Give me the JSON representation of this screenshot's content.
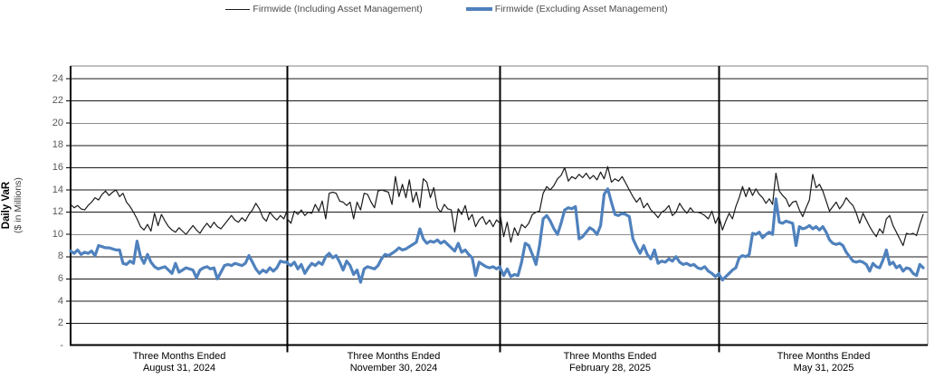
{
  "chart_data": {
    "type": "line",
    "ylabel": "Daily VaR",
    "ylabel_sub": "($ in Millions)",
    "ylim": [
      0,
      25.1
    ],
    "yticks": [
      2,
      4,
      6,
      8,
      10,
      12,
      14,
      16,
      18,
      20,
      22,
      24
    ],
    "y_zero_label": "-",
    "grid": "horizontal",
    "legend_position": "top",
    "x_groups": [
      {
        "label_line1": "Three Months Ended",
        "label_line2": "August 31, 2024"
      },
      {
        "label_line1": "Three Months Ended",
        "label_line2": "November 30, 2024"
      },
      {
        "label_line1": "Three Months Ended",
        "label_line2": "February 28, 2025"
      },
      {
        "label_line1": "Three Months Ended",
        "label_line2": "May 31, 2025"
      }
    ],
    "series": [
      {
        "name": "Firmwide (Including Asset Management)",
        "color": "#1a1a1a",
        "style": "thin",
        "values_by_quarter": [
          [
            12.7,
            12.4,
            12.6,
            12.3,
            12.2,
            12.6,
            12.9,
            13.3,
            13.1,
            13.6,
            13.9,
            13.5,
            13.8,
            14.0,
            13.4,
            13.7,
            12.9,
            12.5,
            12.0,
            11.4,
            10.7,
            10.4,
            10.9,
            10.3,
            11.9,
            10.8,
            11.8,
            11.2,
            10.7,
            10.4,
            10.2,
            10.6,
            10.3,
            10.0,
            10.4,
            10.8,
            10.4,
            10.1,
            10.6,
            11.0,
            10.6,
            11.1,
            10.7,
            10.5,
            10.9,
            11.3,
            11.7,
            11.3,
            11.1,
            11.5,
            11.2,
            11.8,
            12.2,
            12.8,
            12.3,
            11.5,
            11.2,
            12.0,
            11.6,
            11.3,
            11.7,
            11.4,
            12.2
          ],
          [
            11.4,
            11.0,
            12.1,
            11.8,
            12.2,
            11.7,
            12.0,
            11.9,
            12.7,
            12.1,
            13.0,
            11.4,
            13.7,
            13.8,
            13.7,
            13.0,
            12.9,
            12.6,
            12.9,
            11.4,
            12.9,
            12.2,
            13.7,
            13.6,
            12.9,
            12.4,
            13.9,
            14.0,
            13.9,
            13.8,
            12.7,
            15.2,
            13.4,
            14.5,
            13.3,
            14.9,
            12.9,
            13.8,
            12.4,
            15.0,
            14.7,
            13.3,
            14.2,
            12.4,
            12.0,
            12.7,
            12.3,
            12.2,
            10.2,
            12.3,
            11.8,
            12.6,
            11.3,
            11.8,
            10.7,
            11.3,
            11.6,
            10.9,
            11.3,
            10.7,
            11.3,
            11.0
          ],
          [
            11.9,
            9.8,
            11.1,
            9.3,
            10.6,
            9.9,
            10.9,
            10.6,
            11.0,
            11.8,
            12.0,
            12.1,
            13.7,
            14.3,
            14.0,
            14.4,
            15.0,
            15.3,
            16.0,
            14.8,
            15.2,
            15.0,
            15.4,
            15.1,
            15.5,
            15.0,
            15.3,
            14.9,
            15.6,
            15.0,
            16.1,
            14.7,
            15.0,
            14.8,
            15.2,
            14.6,
            14.0,
            13.4,
            12.9,
            13.3,
            12.4,
            12.8,
            12.2,
            11.9,
            11.5,
            12.0,
            12.2,
            12.6,
            11.7,
            12.0,
            12.8,
            12.3,
            11.9,
            12.4,
            12.0,
            12.0,
            11.9,
            11.7,
            11.4,
            12.1,
            11.0,
            11.7
          ],
          [
            11.6,
            10.4,
            11.2,
            11.9,
            11.4,
            12.5,
            13.3,
            14.3,
            13.4,
            14.2,
            13.5,
            14.1,
            13.6,
            13.3,
            12.8,
            13.2,
            12.7,
            15.5,
            13.9,
            13.5,
            13.2,
            12.5,
            12.9,
            13.0,
            12.2,
            11.6,
            12.4,
            13.1,
            15.4,
            14.2,
            14.5,
            13.9,
            13.0,
            12.1,
            12.5,
            12.9,
            12.3,
            12.7,
            13.3,
            12.9,
            12.6,
            11.9,
            11.0,
            11.9,
            11.3,
            10.7,
            10.2,
            9.8,
            10.5,
            10.1,
            11.4,
            11.7,
            10.8,
            10.2,
            9.6,
            9.0,
            10.1,
            10.0,
            10.1,
            9.9,
            10.9,
            11.8
          ]
        ]
      },
      {
        "name": "Firmwide (Excluding Asset Management)",
        "color": "#4f81bd",
        "style": "thick",
        "values_by_quarter": [
          [
            8.5,
            8.3,
            8.6,
            8.2,
            8.4,
            8.3,
            8.5,
            8.1,
            9.0,
            8.9,
            8.8,
            8.8,
            8.7,
            8.6,
            8.6,
            7.4,
            7.3,
            7.6,
            7.4,
            9.4,
            8.0,
            7.4,
            8.2,
            7.5,
            7.1,
            6.9,
            7.0,
            7.1,
            6.8,
            6.5,
            7.4,
            6.6,
            6.8,
            7.0,
            6.9,
            6.8,
            6.1,
            6.8,
            7.0,
            7.1,
            6.9,
            7.0,
            6.0,
            6.6,
            7.2,
            7.3,
            7.2,
            7.4,
            7.3,
            7.2,
            7.4,
            8.1,
            7.5,
            6.9,
            6.5,
            6.8,
            6.6,
            7.0,
            6.7,
            7.0,
            7.6,
            7.5,
            7.5
          ],
          [
            7.4,
            7.2,
            7.5,
            6.9,
            7.3,
            6.5,
            7.0,
            7.4,
            7.2,
            7.5,
            7.3,
            8.0,
            8.3,
            7.9,
            8.1,
            7.5,
            6.8,
            7.6,
            7.2,
            6.4,
            6.8,
            5.7,
            6.9,
            7.1,
            7.0,
            6.9,
            7.2,
            7.8,
            8.2,
            8.1,
            8.3,
            8.5,
            8.8,
            8.6,
            8.7,
            8.9,
            9.1,
            9.3,
            10.5,
            9.6,
            9.2,
            9.4,
            9.3,
            9.5,
            9.2,
            9.4,
            9.1,
            8.8,
            8.5,
            9.2,
            8.4,
            8.6,
            8.2,
            7.9,
            6.3,
            7.5,
            7.3,
            7.1,
            7.0,
            7.1,
            6.9,
            7.1
          ],
          [
            7.0,
            6.3,
            6.9,
            6.2,
            6.4,
            6.3,
            7.5,
            9.2,
            9.0,
            8.2,
            7.3,
            9.0,
            11.4,
            11.7,
            11.2,
            10.5,
            10.0,
            11.0,
            12.2,
            12.4,
            12.3,
            12.5,
            9.6,
            9.8,
            10.2,
            10.6,
            10.4,
            10.0,
            10.8,
            13.6,
            14.1,
            12.9,
            11.8,
            11.7,
            11.9,
            11.8,
            11.6,
            9.6,
            8.9,
            8.3,
            9.0,
            8.2,
            7.8,
            8.6,
            7.4,
            7.6,
            7.5,
            7.8,
            7.6,
            8.0,
            7.5,
            7.3,
            7.4,
            7.2,
            7.3,
            7.0,
            6.9,
            7.1,
            6.7,
            6.5,
            6.2,
            6.5
          ],
          [
            6.4,
            5.9,
            6.2,
            6.5,
            6.8,
            7.0,
            7.9,
            8.1,
            8.0,
            8.2,
            10.1,
            10.0,
            10.2,
            9.7,
            10.0,
            10.2,
            10.0,
            13.2,
            11.1,
            11.0,
            11.2,
            11.1,
            11.0,
            9.0,
            10.7,
            10.5,
            10.6,
            10.8,
            10.5,
            10.7,
            10.4,
            10.7,
            10.2,
            9.5,
            9.2,
            9.1,
            9.2,
            9.0,
            8.4,
            8.0,
            7.6,
            7.5,
            7.6,
            7.5,
            7.3,
            6.7,
            7.4,
            7.1,
            7.0,
            7.7,
            8.6,
            7.3,
            7.5,
            7.0,
            7.2,
            6.7,
            7.0,
            6.9,
            6.5,
            6.3,
            7.3,
            7.0
          ]
        ]
      }
    ]
  }
}
